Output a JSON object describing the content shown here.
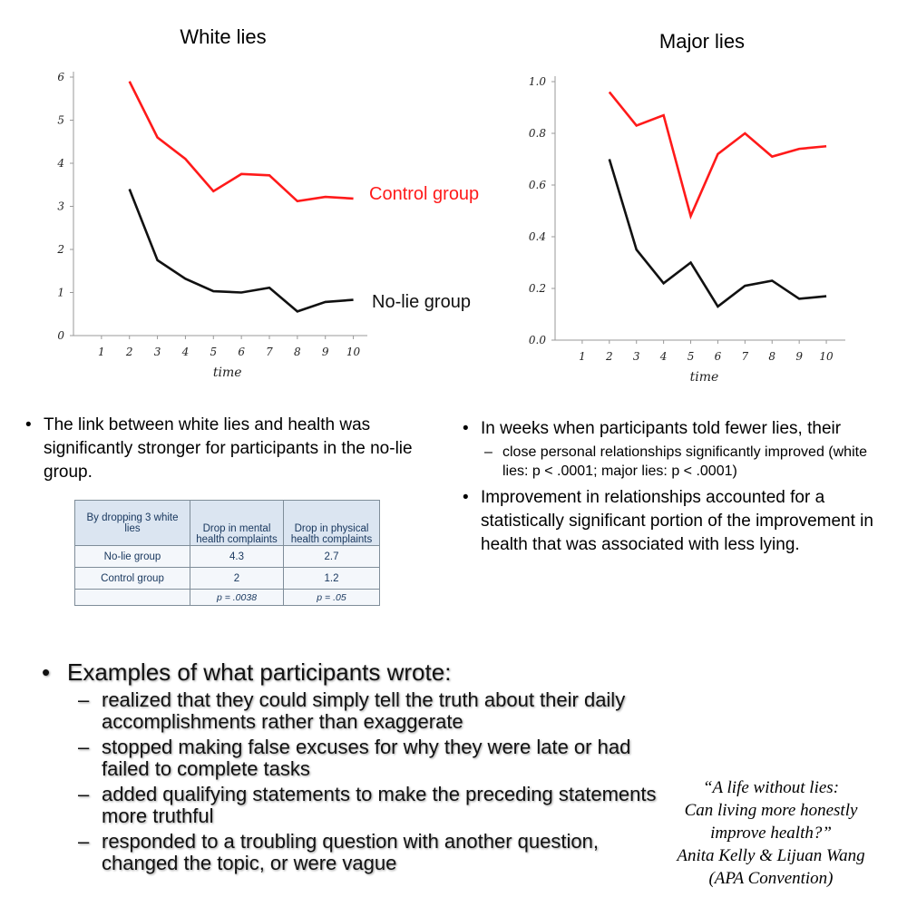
{
  "chart_data": [
    {
      "type": "line",
      "title": "White lies",
      "xlabel": "time",
      "ylabel": "",
      "x": [
        2,
        3,
        4,
        5,
        6,
        7,
        8,
        9,
        10
      ],
      "xticks": [
        "1",
        "2",
        "3",
        "4",
        "5",
        "6",
        "7",
        "8",
        "9",
        "10"
      ],
      "yticks": [
        "0",
        "1",
        "2",
        "3",
        "4",
        "5",
        "6"
      ],
      "xlim": [
        0,
        10.5
      ],
      "ylim": [
        0,
        6
      ],
      "grid": false,
      "series": [
        {
          "name": "Control group",
          "color": "#ff1a1a",
          "values": [
            5.9,
            4.6,
            4.1,
            3.35,
            3.75,
            3.72,
            3.12,
            3.22,
            3.18
          ]
        },
        {
          "name": "No-lie group",
          "color": "#111111",
          "values": [
            3.4,
            1.75,
            1.32,
            1.03,
            1.0,
            1.11,
            0.56,
            0.78,
            0.83
          ]
        }
      ]
    },
    {
      "type": "line",
      "title": "Major lies",
      "xlabel": "time",
      "ylabel": "",
      "x": [
        2,
        3,
        4,
        5,
        6,
        7,
        8,
        9,
        10
      ],
      "xticks": [
        "1",
        "2",
        "3",
        "4",
        "5",
        "6",
        "7",
        "8",
        "9",
        "10"
      ],
      "yticks": [
        "0.0",
        "0.2",
        "0.4",
        "0.6",
        "0.8",
        "1.0"
      ],
      "xlim": [
        0,
        10.7
      ],
      "ylim": [
        0,
        1.0
      ],
      "grid": false,
      "series": [
        {
          "name": "Control group",
          "color": "#ff1a1a",
          "values": [
            0.96,
            0.83,
            0.87,
            0.48,
            0.72,
            0.8,
            0.71,
            0.74,
            0.75
          ]
        },
        {
          "name": "No-lie group",
          "color": "#111111",
          "values": [
            0.7,
            0.35,
            0.22,
            0.3,
            0.13,
            0.21,
            0.23,
            0.16,
            0.17
          ]
        }
      ]
    }
  ],
  "bullets_left": [
    "The link between white lies and health was significantly stronger for participants in the no-lie group."
  ],
  "bullets_right": {
    "b1": "In weeks when participants told fewer lies, their",
    "b1_sub": "close personal relationships significantly improved (white lies: p < .0001; major lies: p < .0001)",
    "b2": "Improvement in relationships accounted for a statistically significant portion of the improvement in health that was associated with less lying."
  },
  "table": {
    "headers": [
      "By dropping 3 white lies",
      "Drop in mental health complaints",
      "Drop in physical health complaints"
    ],
    "rows": [
      [
        "No-lie group",
        "4.3",
        "2.7"
      ],
      [
        "Control group",
        "2",
        "1.2"
      ],
      [
        "",
        "p =  .0038",
        "p = .05"
      ]
    ]
  },
  "examples": {
    "heading": "Examples of what participants wrote:",
    "items": [
      "realized that they could simply tell the truth about their daily accomplishments rather than exaggerate",
      "stopped making false excuses for why they were late or had failed to complete tasks",
      "added qualifying statements to make the preceding statements more truthful",
      "responded to a troubling question with another question, changed the topic, or were vague"
    ]
  },
  "citation": {
    "lines": [
      "“A life without lies:",
      "Can living more honestly",
      "improve health?”",
      "Anita Kelly & Lijuan Wang",
      "(APA Convention)"
    ]
  }
}
